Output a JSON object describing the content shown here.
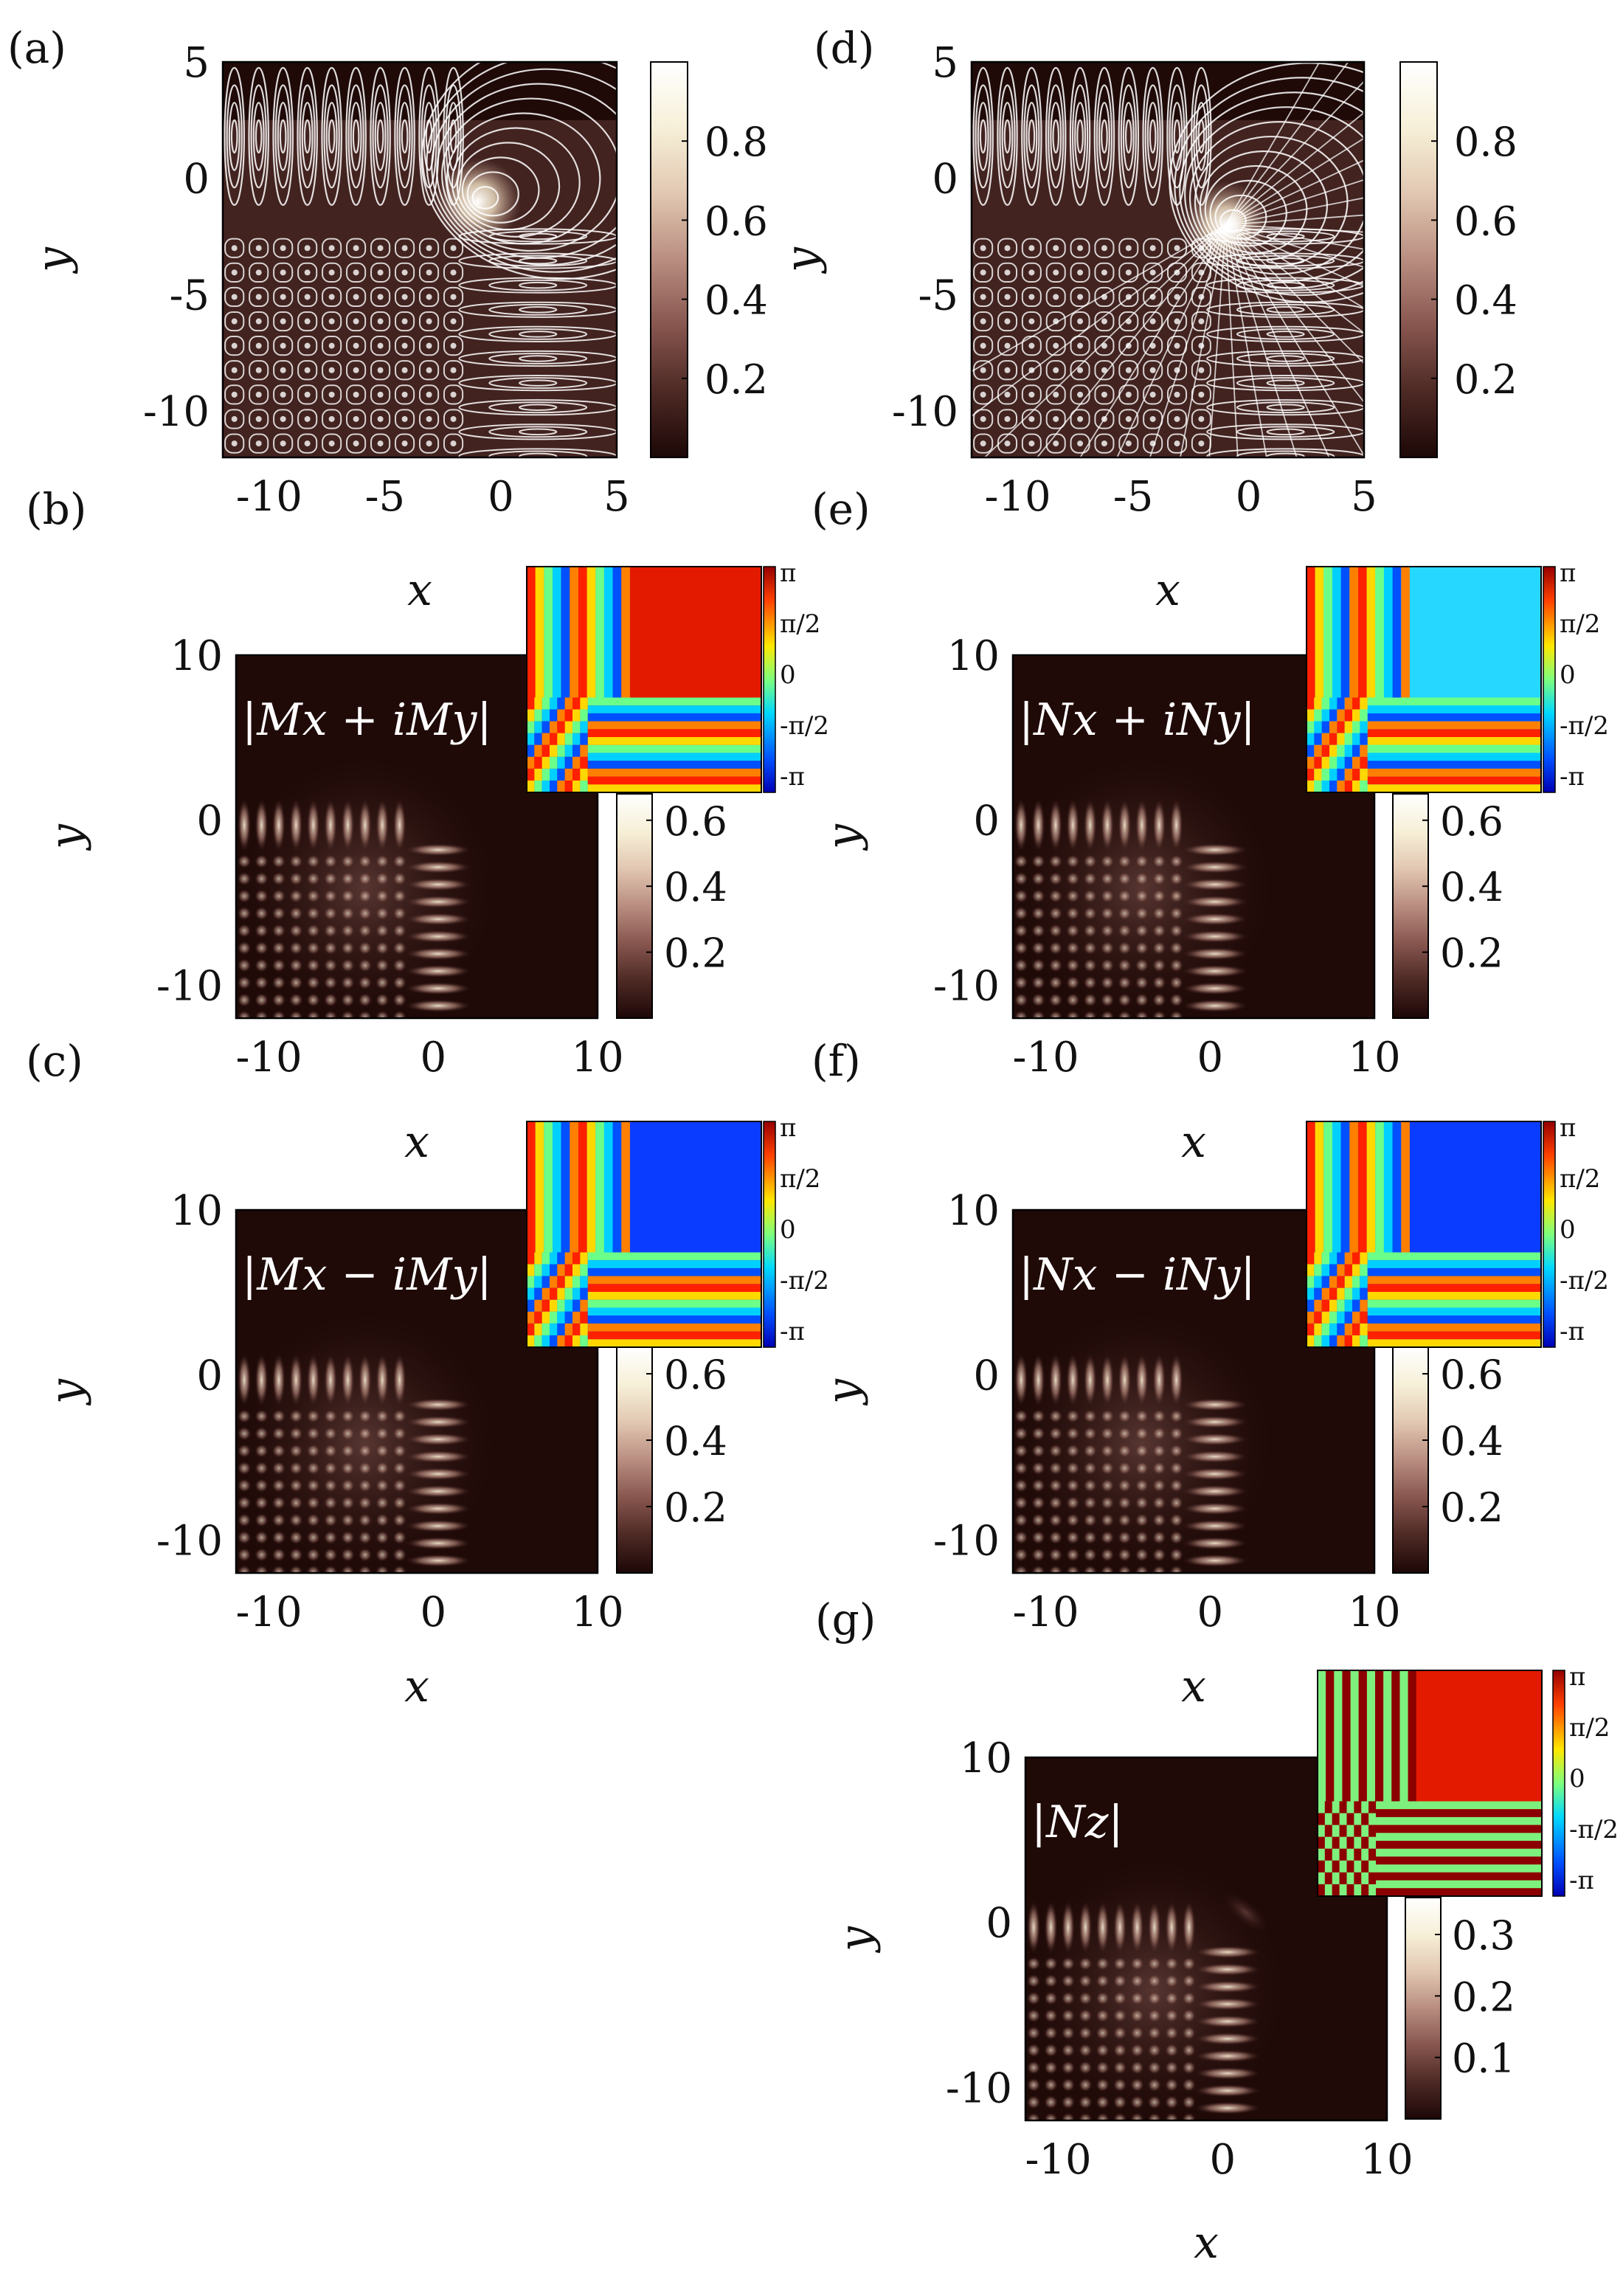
{
  "figure": {
    "colors": {
      "frame": "#000000",
      "streamline": "#ffffff",
      "background": "#1f0a08",
      "bright": "#fbf8ea"
    },
    "colormap_magnitude": [
      "#1c0707",
      "#4e2a25",
      "#86554e",
      "#b98d80",
      "#e2c8b2",
      "#f6efd7",
      "#ffffff"
    ],
    "colormap_phase": [
      "#0000b4",
      "#0050ff",
      "#00d8ff",
      "#7dff7d",
      "#ffe800",
      "#ff4000",
      "#960000"
    ]
  },
  "chart_data": [
    {
      "id": "a",
      "panel_label": "(a)",
      "type": "heatmap",
      "subtype": "magnitude with white streamlines",
      "xlabel": "x",
      "ylabel": "y",
      "xlim": [
        -12,
        5
      ],
      "ylim": [
        -12,
        5
      ],
      "xticks": [
        "-10",
        "-5",
        "0",
        "5"
      ],
      "xtick_values": [
        -10,
        -5,
        0,
        5
      ],
      "yticks": [
        "5",
        "0",
        "-5",
        "-10"
      ],
      "ytick_values": [
        5,
        0,
        -5,
        -10
      ],
      "colorbar": {
        "ticks": [
          "0.8",
          "0.6",
          "0.4",
          "0.2"
        ],
        "tick_values": [
          0.8,
          0.6,
          0.4,
          0.2
        ],
        "range": [
          0,
          1
        ]
      },
      "peak": {
        "x": -1,
        "y": -1,
        "value": 1.0
      },
      "streamlines": true
    },
    {
      "id": "d",
      "panel_label": "(d)",
      "type": "heatmap",
      "subtype": "magnitude with white streamlines",
      "xlabel": "x",
      "ylabel": "y",
      "xlim": [
        -12,
        5
      ],
      "ylim": [
        -12,
        5
      ],
      "xticks": [
        "-10",
        "-5",
        "0",
        "5"
      ],
      "xtick_values": [
        -10,
        -5,
        0,
        5
      ],
      "yticks": [
        "5",
        "0",
        "-5",
        "-10"
      ],
      "ytick_values": [
        5,
        0,
        -5,
        -10
      ],
      "colorbar": {
        "ticks": [
          "0.8",
          "0.6",
          "0.4",
          "0.2"
        ],
        "tick_values": [
          0.8,
          0.6,
          0.4,
          0.2
        ],
        "range": [
          0,
          1
        ]
      },
      "peak": {
        "x": -1,
        "y": -2,
        "value": 1.0
      },
      "streamlines": true
    },
    {
      "id": "b",
      "panel_label": "(b)",
      "type": "heatmap",
      "subtype": "magnitude with phase inset",
      "overlay_label": "|Mx + iMy|",
      "xlabel": "x",
      "ylabel": "y",
      "xlim": [
        -12,
        10
      ],
      "ylim": [
        -12,
        10
      ],
      "xticks": [
        "-10",
        "0",
        "10"
      ],
      "xtick_values": [
        -10,
        0,
        10
      ],
      "yticks": [
        "10",
        "0",
        "-10"
      ],
      "ytick_values": [
        10,
        0,
        -10
      ],
      "colorbar": {
        "ticks": [
          "0.6",
          "0.4",
          "0.2"
        ],
        "tick_values": [
          0.6,
          0.4,
          0.2
        ],
        "range": [
          0,
          0.68
        ]
      },
      "inset": {
        "corner_phase": "π",
        "colorbar_ticks": [
          "π",
          "π/2",
          "0",
          "-π/2",
          "-π"
        ]
      }
    },
    {
      "id": "e",
      "panel_label": "(e)",
      "type": "heatmap",
      "subtype": "magnitude with phase inset",
      "overlay_label": "|Nx + iNy|",
      "xlabel": "x",
      "ylabel": "y",
      "xlim": [
        -12,
        10
      ],
      "ylim": [
        -12,
        10
      ],
      "xticks": [
        "-10",
        "0",
        "10"
      ],
      "xtick_values": [
        -10,
        0,
        10
      ],
      "yticks": [
        "10",
        "0",
        "-10"
      ],
      "ytick_values": [
        10,
        0,
        -10
      ],
      "colorbar": {
        "ticks": [
          "0.6",
          "0.4",
          "0.2"
        ],
        "tick_values": [
          0.6,
          0.4,
          0.2
        ],
        "range": [
          0,
          0.68
        ]
      },
      "inset": {
        "corner_phase": "-π/2",
        "colorbar_ticks": [
          "π",
          "π/2",
          "0",
          "-π/2",
          "-π"
        ]
      }
    },
    {
      "id": "c",
      "panel_label": "(c)",
      "type": "heatmap",
      "subtype": "magnitude with phase inset",
      "overlay_label": "|Mx − iMy|",
      "xlabel": "x",
      "ylabel": "y",
      "xlim": [
        -12,
        10
      ],
      "ylim": [
        -12,
        10
      ],
      "xticks": [
        "-10",
        "0",
        "10"
      ],
      "xtick_values": [
        -10,
        0,
        10
      ],
      "yticks": [
        "10",
        "0",
        "-10"
      ],
      "ytick_values": [
        10,
        0,
        -10
      ],
      "colorbar": {
        "ticks": [
          "0.6",
          "0.4",
          "0.2"
        ],
        "tick_values": [
          0.6,
          0.4,
          0.2
        ],
        "range": [
          0,
          0.68
        ]
      },
      "inset": {
        "corner_phase": "-3π/4",
        "colorbar_ticks": [
          "π",
          "π/2",
          "0",
          "-π/2",
          "-π"
        ]
      }
    },
    {
      "id": "f",
      "panel_label": "(f)",
      "type": "heatmap",
      "subtype": "magnitude with phase inset",
      "overlay_label": "|Nx − iNy|",
      "xlabel": "x",
      "ylabel": "y",
      "xlim": [
        -12,
        10
      ],
      "ylim": [
        -12,
        10
      ],
      "xticks": [
        "-10",
        "0",
        "10"
      ],
      "xtick_values": [
        -10,
        0,
        10
      ],
      "yticks": [
        "10",
        "0",
        "-10"
      ],
      "ytick_values": [
        10,
        0,
        -10
      ],
      "colorbar": {
        "ticks": [
          "0.6",
          "0.4",
          "0.2"
        ],
        "tick_values": [
          0.6,
          0.4,
          0.2
        ],
        "range": [
          0,
          0.68
        ]
      },
      "inset": {
        "corner_phase": "-3π/4",
        "colorbar_ticks": [
          "π",
          "π/2",
          "0",
          "-π/2",
          "-π"
        ]
      }
    },
    {
      "id": "g",
      "panel_label": "(g)",
      "type": "heatmap",
      "subtype": "magnitude with phase inset",
      "overlay_label": "|Nz|",
      "xlabel": "x",
      "ylabel": "y",
      "xlim": [
        -12,
        10
      ],
      "ylim": [
        -12,
        10
      ],
      "xticks": [
        "-10",
        "0",
        "10"
      ],
      "xtick_values": [
        -10,
        0,
        10
      ],
      "yticks": [
        "10",
        "0",
        "-10"
      ],
      "ytick_values": [
        10,
        0,
        -10
      ],
      "colorbar": {
        "ticks": [
          "0.3",
          "0.2",
          "0.1"
        ],
        "tick_values": [
          0.3,
          0.2,
          0.1
        ],
        "range": [
          0,
          0.36
        ]
      },
      "inset": {
        "corner_phase": "π",
        "colorbar_ticks": [
          "π",
          "π/2",
          "0",
          "-π/2",
          "-π"
        ],
        "binary": true
      }
    }
  ]
}
